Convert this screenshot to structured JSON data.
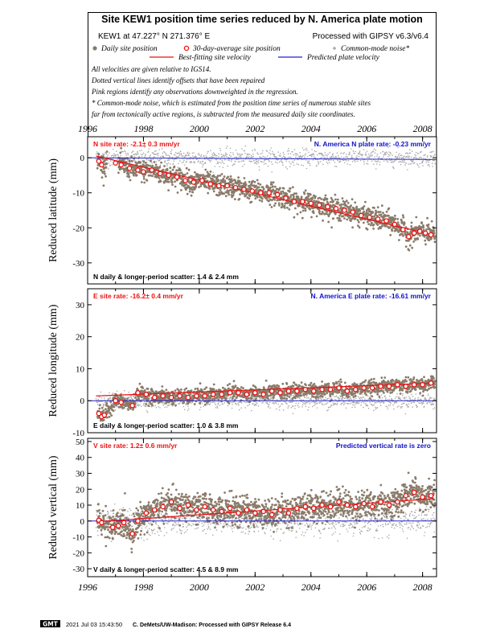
{
  "header": {
    "title": "Site KEW1 position time series reduced by N. America plate motion",
    "site_line": "KEW1 at 47.227° N 271.376° E",
    "processing_line": "Processed with GIPSY v6.3/v6.4",
    "legend": {
      "daily": "Daily site position",
      "avg30": "30-day-average site position",
      "cm_noise": "Common-mode noise*",
      "best_fit": "Best-fitting site velocity",
      "predicted": "Predicted plate velocity"
    },
    "notes": [
      "All velocities are given relative to IGS14.",
      "Dotted vertical lines identify offsets that have been repaired",
      "Pink regions identify any observations downweighted in the regression.",
      "* Common-mode noise, which is estimated from the position time series of numerous stable sites",
      "far from tectonically active regions, is subtracted from the measured daily site coordinates."
    ]
  },
  "footer": {
    "badge": "GMT",
    "timestamp": "2021 Jul 03 15:43:50",
    "credit": "C. DeMets/UW-Madison: Processed with GIPSY Release 6.4"
  },
  "colors": {
    "daily": "#8a7b6a",
    "avg30_edge": "#ee1111",
    "avg30_fill": "#ffffff",
    "cm_noise": "#aaaaaa",
    "best_fit": "#ee1111",
    "predicted": "#2222cc",
    "rate_red": "#ee1111",
    "rate_blue": "#1111cc"
  },
  "chart_data": [
    {
      "type": "scatter",
      "panel": "north",
      "ylabel": "Reduced latitude (mm)",
      "xticks": [
        "1996",
        "1998",
        "2000",
        "2002",
        "2004",
        "2006",
        "2008"
      ],
      "yticks": [
        "0",
        "-10",
        "-20",
        "-30"
      ],
      "xlim": [
        1996.0,
        2008.5
      ],
      "ylim": [
        -36,
        6
      ],
      "site_rate_text": "N site rate:  -2.1± 0.3 mm/yr",
      "plate_rate_text": "N. America N plate rate: -0.23 mm/yr",
      "scatter_text": "N daily & longer-period scatter:   1.4 &   2.4 mm",
      "best_fit_line": [
        [
          1996.3,
          0.5
        ],
        [
          2008.4,
          -22.0
        ]
      ],
      "predicted_line": [
        [
          1996.0,
          0.0
        ],
        [
          2008.5,
          -0.5
        ]
      ],
      "avg30": [
        [
          1996.4,
          -1.0
        ],
        [
          1996.5,
          -2.0
        ],
        [
          1997.0,
          -1.5
        ],
        [
          1997.2,
          -2.0
        ],
        [
          1997.5,
          -3.0
        ],
        [
          1997.8,
          -3.5
        ],
        [
          1998.0,
          -4.0
        ],
        [
          1998.3,
          -3.5
        ],
        [
          1998.6,
          -4.5
        ],
        [
          1998.9,
          -5.0
        ],
        [
          1999.2,
          -5.5
        ],
        [
          1999.5,
          -6.5
        ],
        [
          1999.8,
          -7.0
        ],
        [
          2000.1,
          -6.5
        ],
        [
          2000.4,
          -7.5
        ],
        [
          2000.7,
          -8.0
        ],
        [
          2001.0,
          -8.0
        ],
        [
          2001.3,
          -8.5
        ],
        [
          2001.6,
          -9.0
        ],
        [
          2001.9,
          -9.5
        ],
        [
          2002.2,
          -10.0
        ],
        [
          2002.5,
          -10.0
        ],
        [
          2002.8,
          -10.5
        ],
        [
          2003.1,
          -11.5
        ],
        [
          2003.4,
          -12.5
        ],
        [
          2003.7,
          -12.5
        ],
        [
          2004.0,
          -13.0
        ],
        [
          2004.3,
          -13.5
        ],
        [
          2004.6,
          -14.0
        ],
        [
          2004.9,
          -14.5
        ],
        [
          2005.2,
          -15.0
        ],
        [
          2005.5,
          -15.5
        ],
        [
          2005.8,
          -16.5
        ],
        [
          2006.1,
          -17.0
        ],
        [
          2006.4,
          -17.5
        ],
        [
          2006.7,
          -18.0
        ],
        [
          2007.0,
          -19.0
        ],
        [
          2007.3,
          -20.5
        ],
        [
          2007.5,
          -22.5
        ],
        [
          2007.7,
          -21.5
        ],
        [
          2007.9,
          -21.0
        ],
        [
          2008.1,
          -21.5
        ],
        [
          2008.3,
          -22.0
        ]
      ]
    },
    {
      "type": "scatter",
      "panel": "east",
      "ylabel": "Reduced longitude (mm)",
      "xticks": [
        "1996",
        "1998",
        "2000",
        "2002",
        "2004",
        "2006",
        "2008"
      ],
      "yticks": [
        "30",
        "20",
        "10",
        "0",
        "-10"
      ],
      "xlim": [
        1996.0,
        2008.5
      ],
      "ylim": [
        -10,
        35
      ],
      "site_rate_text": "E site rate:  -16.2± 0.4 mm/yr",
      "plate_rate_text": "N. America E plate rate: -16.61 mm/yr",
      "scatter_text": "E daily & longer-period scatter:   1.0 &   3.8 mm",
      "best_fit_line": [
        [
          1996.3,
          1.5
        ],
        [
          2008.4,
          5.5
        ]
      ],
      "predicted_line": [
        [
          1996.0,
          0.0
        ],
        [
          2008.5,
          0.0
        ]
      ],
      "avg30": [
        [
          1996.4,
          -4.0
        ],
        [
          1996.5,
          -5.0
        ],
        [
          1996.6,
          -4.5
        ],
        [
          1997.0,
          0.0
        ],
        [
          1997.2,
          -0.5
        ],
        [
          1997.6,
          -1.5
        ],
        [
          1997.8,
          2.5
        ],
        [
          1998.1,
          2.0
        ],
        [
          1998.4,
          1.0
        ],
        [
          1998.7,
          1.5
        ],
        [
          1999.0,
          1.0
        ],
        [
          1999.3,
          1.5
        ],
        [
          1999.6,
          1.0
        ],
        [
          1999.9,
          1.5
        ],
        [
          2000.2,
          1.5
        ],
        [
          2000.5,
          2.0
        ],
        [
          2000.8,
          2.0
        ],
        [
          2001.1,
          2.5
        ],
        [
          2001.4,
          2.5
        ],
        [
          2001.7,
          2.0
        ],
        [
          2002.0,
          2.5
        ],
        [
          2002.3,
          2.0
        ],
        [
          2002.6,
          3.0
        ],
        [
          2002.9,
          2.5
        ],
        [
          2003.2,
          3.0
        ],
        [
          2003.5,
          3.0
        ],
        [
          2003.8,
          3.5
        ],
        [
          2004.1,
          3.0
        ],
        [
          2004.4,
          3.5
        ],
        [
          2004.7,
          3.5
        ],
        [
          2005.0,
          4.0
        ],
        [
          2005.3,
          3.0
        ],
        [
          2005.6,
          3.5
        ],
        [
          2005.9,
          4.0
        ],
        [
          2006.2,
          4.0
        ],
        [
          2006.5,
          4.5
        ],
        [
          2006.8,
          4.5
        ],
        [
          2007.1,
          5.0
        ],
        [
          2007.4,
          4.5
        ],
        [
          2007.7,
          5.0
        ],
        [
          2008.0,
          5.0
        ],
        [
          2008.3,
          5.5
        ]
      ]
    },
    {
      "type": "scatter",
      "panel": "vertical",
      "ylabel": "Reduced vertical (mm)",
      "xticks": [
        "1996",
        "1998",
        "2000",
        "2002",
        "2004",
        "2006",
        "2008"
      ],
      "yticks": [
        "50",
        "40",
        "30",
        "20",
        "10",
        "0",
        "-10",
        "-20",
        "-30"
      ],
      "xlim": [
        1996.0,
        2008.5
      ],
      "ylim": [
        -35,
        52
      ],
      "site_rate_text": "V site rate:   1.2± 0.6 mm/yr",
      "plate_rate_text": "Predicted vertical rate is zero",
      "scatter_text": "V daily & longer-period scatter:   4.5 &   8.9 mm",
      "best_fit_line": [
        [
          1996.3,
          -0.5
        ],
        [
          2008.4,
          14.0
        ]
      ],
      "predicted_line": [
        [
          1996.0,
          0.0
        ],
        [
          2008.5,
          0.0
        ]
      ],
      "avg30": [
        [
          1996.4,
          0.5
        ],
        [
          1996.5,
          -1.0
        ],
        [
          1996.9,
          -4.0
        ],
        [
          1997.1,
          -3.0
        ],
        [
          1997.3,
          -1.0
        ],
        [
          1997.6,
          -8.0
        ],
        [
          1997.8,
          0.0
        ],
        [
          1998.1,
          5.0
        ],
        [
          1998.4,
          7.0
        ],
        [
          1998.7,
          9.0
        ],
        [
          1999.0,
          12.0
        ],
        [
          1999.3,
          8.0
        ],
        [
          1999.6,
          10.0
        ],
        [
          1999.9,
          7.0
        ],
        [
          2000.2,
          9.0
        ],
        [
          2000.5,
          7.0
        ],
        [
          2000.8,
          6.0
        ],
        [
          2001.1,
          8.0
        ],
        [
          2001.4,
          5.0
        ],
        [
          2001.7,
          7.0
        ],
        [
          2002.0,
          5.0
        ],
        [
          2002.3,
          6.0
        ],
        [
          2002.6,
          4.0
        ],
        [
          2002.9,
          7.0
        ],
        [
          2003.2,
          5.0
        ],
        [
          2003.5,
          8.0
        ],
        [
          2003.8,
          9.0
        ],
        [
          2004.1,
          8.0
        ],
        [
          2004.4,
          10.0
        ],
        [
          2004.7,
          9.0
        ],
        [
          2005.0,
          12.0
        ],
        [
          2005.3,
          10.0
        ],
        [
          2005.6,
          9.0
        ],
        [
          2005.9,
          11.0
        ],
        [
          2006.2,
          9.0
        ],
        [
          2006.5,
          12.0
        ],
        [
          2006.8,
          10.0
        ],
        [
          2007.1,
          12.0
        ],
        [
          2007.4,
          16.0
        ],
        [
          2007.7,
          18.0
        ],
        [
          2008.0,
          15.0
        ],
        [
          2008.3,
          16.0
        ]
      ]
    }
  ]
}
